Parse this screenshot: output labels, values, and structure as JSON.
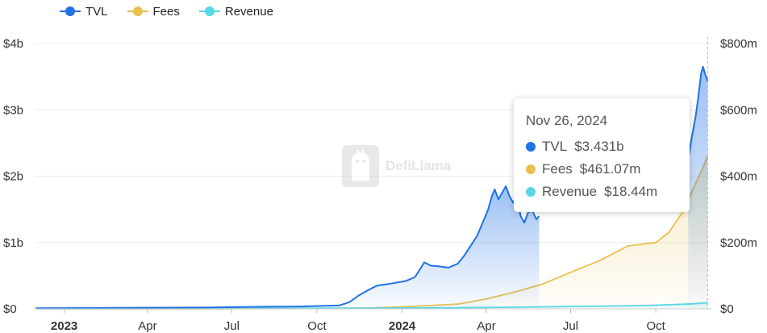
{
  "legend": [
    {
      "label": "TVL",
      "color": "#2172e5"
    },
    {
      "label": "Fees",
      "color": "#e8c04f"
    },
    {
      "label": "Revenue",
      "color": "#57d8e6"
    }
  ],
  "watermark": {
    "text": "DefiLlama",
    "icon": "llama-logo-icon"
  },
  "tooltip": {
    "date": "Nov 26, 2024",
    "rows": [
      {
        "label": "TVL",
        "value": "$3.431b",
        "color": "#2172e5"
      },
      {
        "label": "Fees",
        "value": "$461.07m",
        "color": "#e8c04f"
      },
      {
        "label": "Revenue",
        "value": "$18.44m",
        "color": "#57d8e6"
      }
    ]
  },
  "chart_data": {
    "type": "area",
    "x_start": "2022-12-01",
    "x_end": "2024-11-30",
    "x_ticks": [
      {
        "label": "2023",
        "date": "2023-01-01",
        "bold": true
      },
      {
        "label": "Apr",
        "date": "2023-04-01"
      },
      {
        "label": "Jul",
        "date": "2023-07-01"
      },
      {
        "label": "Oct",
        "date": "2023-10-01"
      },
      {
        "label": "2024",
        "date": "2024-01-01",
        "bold": true
      },
      {
        "label": "Apr",
        "date": "2024-04-01"
      },
      {
        "label": "Jul",
        "date": "2024-07-01"
      },
      {
        "label": "Oct",
        "date": "2024-10-01"
      }
    ],
    "y_left": {
      "min": 0,
      "max": 4000000000,
      "ticks": [
        {
          "v": 0,
          "label": "$0"
        },
        {
          "v": 1000000000,
          "label": "$1b"
        },
        {
          "v": 2000000000,
          "label": "$2b"
        },
        {
          "v": 3000000000,
          "label": "$3b"
        },
        {
          "v": 4000000000,
          "label": "$4b"
        }
      ]
    },
    "y_right": {
      "min": 0,
      "max": 800000000,
      "ticks": [
        {
          "v": 0,
          "label": "$0"
        },
        {
          "v": 200000000,
          "label": "$200m"
        },
        {
          "v": 400000000,
          "label": "$400m"
        },
        {
          "v": 600000000,
          "label": "$600m"
        },
        {
          "v": 800000000,
          "label": "$800m"
        }
      ]
    },
    "grid": true,
    "crosshair_date": "2024-11-26",
    "series": [
      {
        "name": "TVL",
        "axis": "left",
        "color": "#2172e5",
        "fill": true,
        "segments": [
          [
            [
              "2022-12-01",
              10000000
            ],
            [
              "2023-03-01",
              15000000
            ],
            [
              "2023-06-01",
              20000000
            ],
            [
              "2023-08-01",
              30000000
            ],
            [
              "2023-09-15",
              35000000
            ],
            [
              "2023-10-10",
              45000000
            ],
            [
              "2023-10-25",
              50000000
            ],
            [
              "2023-11-05",
              100000000
            ],
            [
              "2023-11-15",
              200000000
            ],
            [
              "2023-11-25",
              280000000
            ],
            [
              "2023-12-05",
              350000000
            ],
            [
              "2023-12-20",
              380000000
            ],
            [
              "2024-01-05",
              420000000
            ],
            [
              "2024-01-15",
              480000000
            ],
            [
              "2024-01-25",
              700000000
            ],
            [
              "2024-02-01",
              650000000
            ],
            [
              "2024-02-10",
              640000000
            ],
            [
              "2024-02-20",
              620000000
            ],
            [
              "2024-03-01",
              680000000
            ],
            [
              "2024-03-08",
              800000000
            ],
            [
              "2024-03-15",
              950000000
            ],
            [
              "2024-03-22",
              1100000000
            ],
            [
              "2024-03-28",
              1300000000
            ],
            [
              "2024-04-03",
              1500000000
            ],
            [
              "2024-04-07",
              1700000000
            ],
            [
              "2024-04-10",
              1800000000
            ],
            [
              "2024-04-14",
              1650000000
            ],
            [
              "2024-04-18",
              1750000000
            ],
            [
              "2024-04-22",
              1850000000
            ],
            [
              "2024-04-26",
              1700000000
            ],
            [
              "2024-04-30",
              1600000000
            ],
            [
              "2024-05-04",
              1700000000
            ],
            [
              "2024-05-08",
              1400000000
            ],
            [
              "2024-05-12",
              1300000000
            ],
            [
              "2024-05-16",
              1450000000
            ],
            [
              "2024-05-20",
              1500000000
            ],
            [
              "2024-05-25",
              1350000000
            ],
            [
              "2024-05-28",
              1400000000
            ]
          ],
          [
            [
              "2024-11-05",
              2250000000
            ],
            [
              "2024-11-09",
              2600000000
            ],
            [
              "2024-11-13",
              2900000000
            ],
            [
              "2024-11-16",
              3200000000
            ],
            [
              "2024-11-19",
              3550000000
            ],
            [
              "2024-11-21",
              3650000000
            ],
            [
              "2024-11-23",
              3550000000
            ],
            [
              "2024-11-26",
              3431000000
            ]
          ]
        ]
      },
      {
        "name": "Fees",
        "axis": "right",
        "color": "#e8c04f",
        "fill": true,
        "segments": [
          [
            [
              "2022-12-01",
              0
            ],
            [
              "2023-06-01",
              0
            ],
            [
              "2023-10-01",
              1000000
            ],
            [
              "2023-12-01",
              3000000
            ],
            [
              "2024-01-01",
              6000000
            ],
            [
              "2024-02-01",
              10000000
            ],
            [
              "2024-03-01",
              14000000
            ],
            [
              "2024-04-01",
              30000000
            ],
            [
              "2024-05-01",
              50000000
            ],
            [
              "2024-06-01",
              75000000
            ],
            [
              "2024-07-01",
              110000000
            ],
            [
              "2024-08-01",
              145000000
            ],
            [
              "2024-09-01",
              190000000
            ],
            [
              "2024-10-01",
              200000000
            ],
            [
              "2024-10-15",
              230000000
            ],
            [
              "2024-11-01",
              300000000
            ],
            [
              "2024-11-10",
              360000000
            ],
            [
              "2024-11-20",
              420000000
            ],
            [
              "2024-11-26",
              461070000
            ]
          ]
        ]
      },
      {
        "name": "Revenue",
        "axis": "right",
        "color": "#57d8e6",
        "fill": true,
        "segments": [
          [
            [
              "2022-12-01",
              0
            ],
            [
              "2023-06-01",
              1000000
            ],
            [
              "2024-01-01",
              2500000
            ],
            [
              "2024-04-01",
              4000000
            ],
            [
              "2024-07-01",
              7000000
            ],
            [
              "2024-09-01",
              9000000
            ],
            [
              "2024-10-01",
              11000000
            ],
            [
              "2024-11-10",
              15000000
            ],
            [
              "2024-11-26",
              18440000
            ]
          ]
        ]
      }
    ]
  }
}
